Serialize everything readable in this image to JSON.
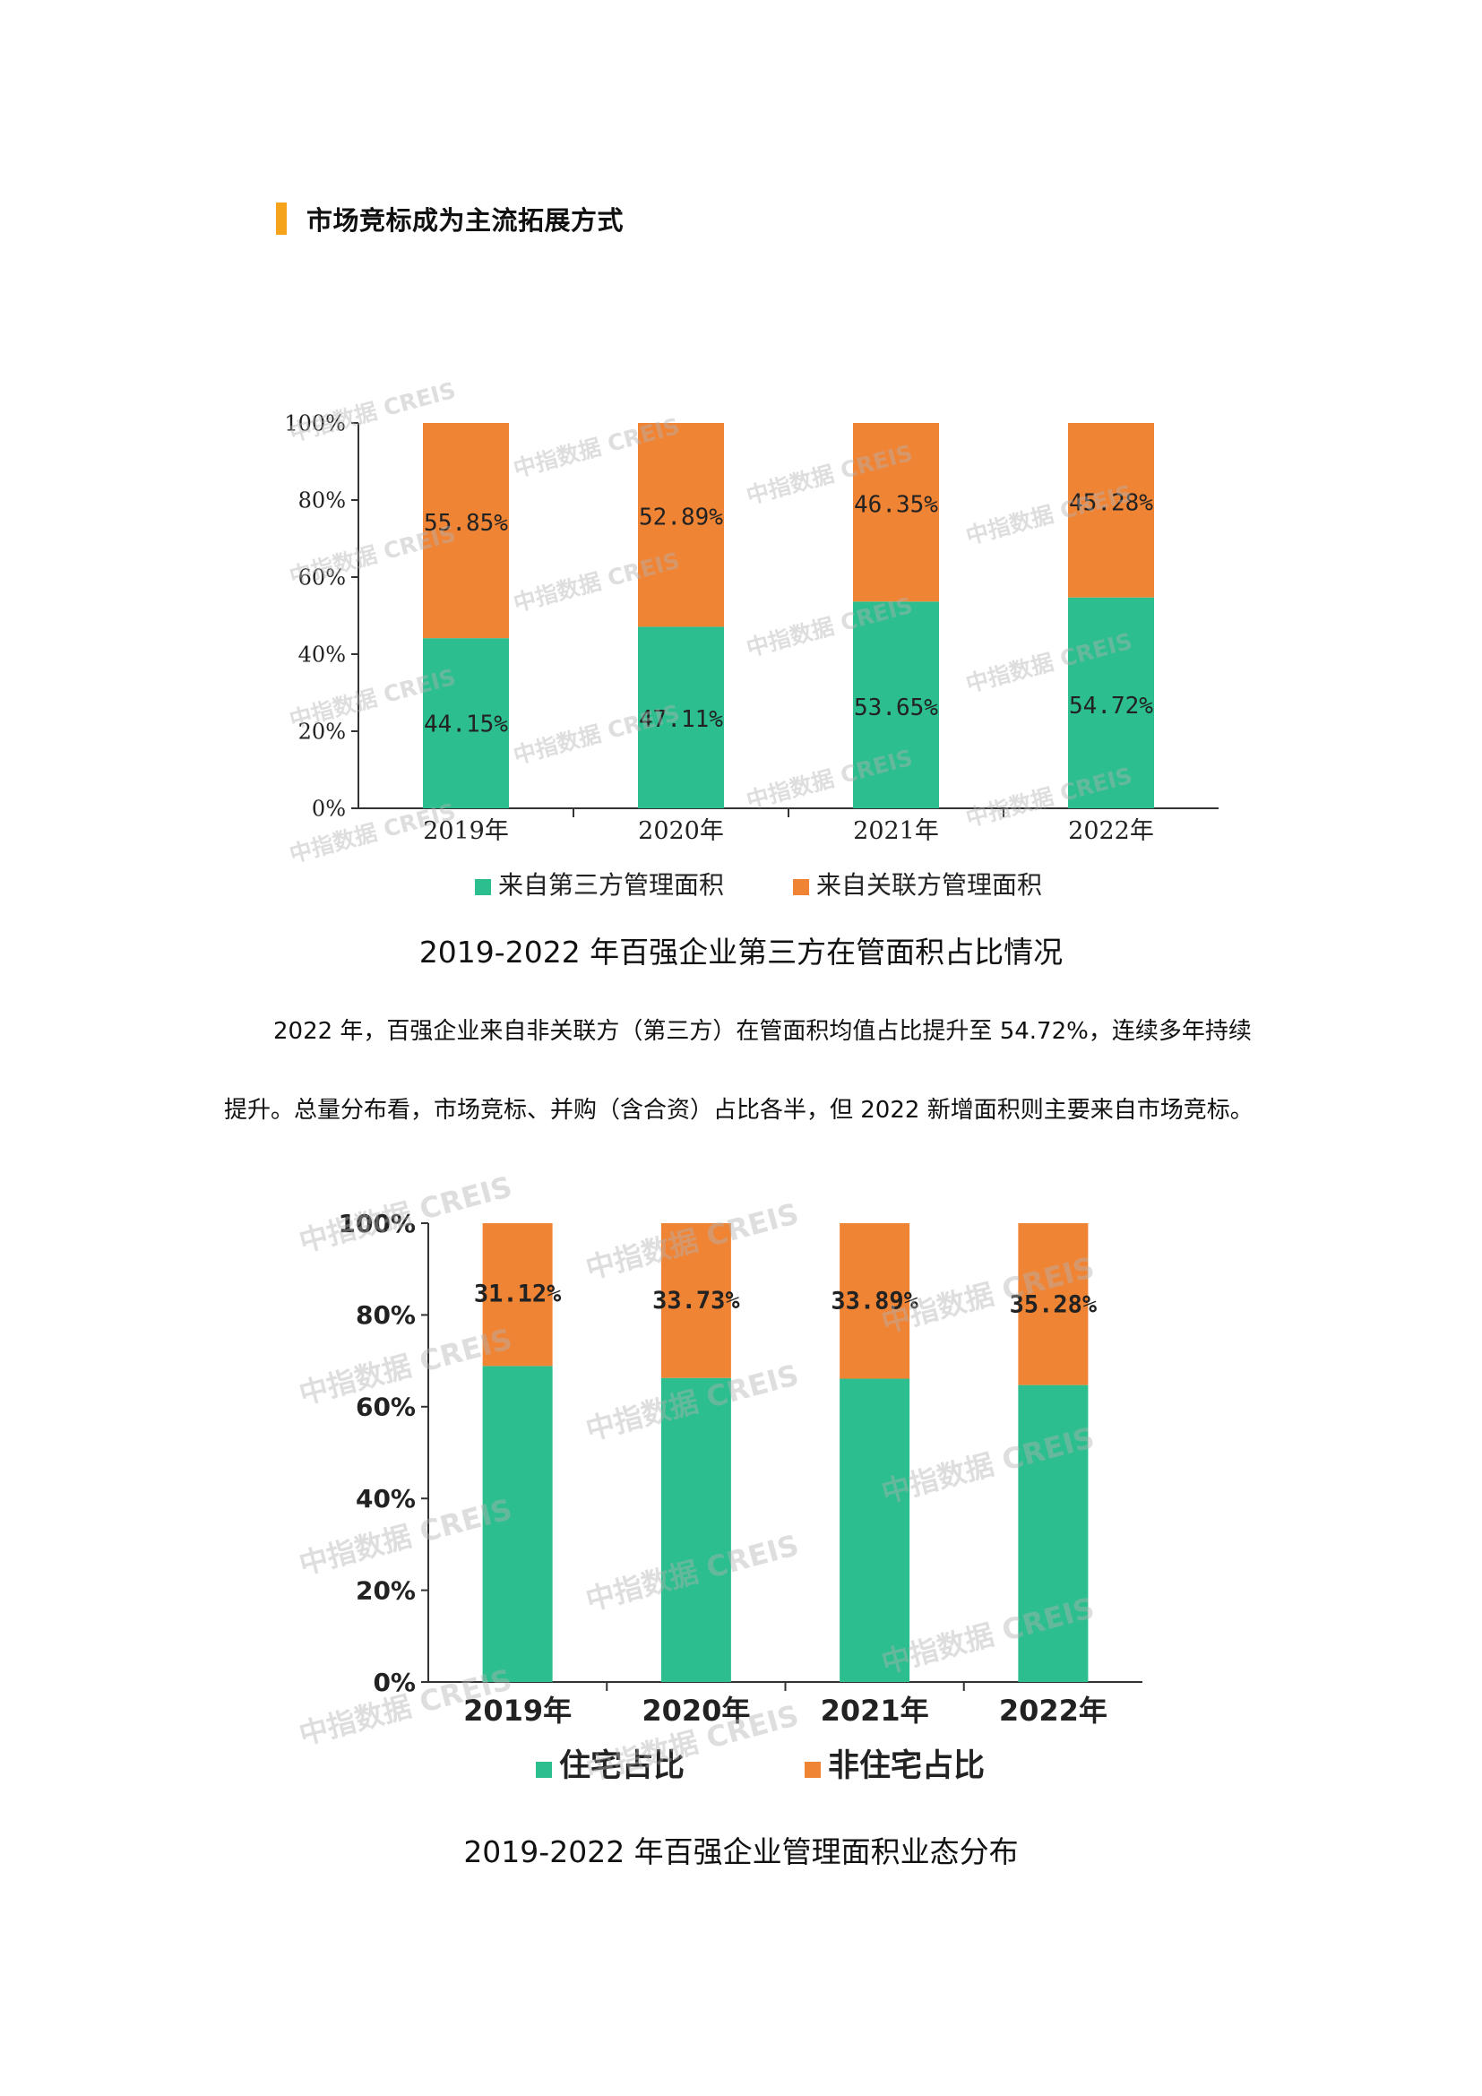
{
  "section": {
    "title": "市场竞标成为主流拓展方式",
    "accent_color": "#F5A31A"
  },
  "watermark": "中指数据 CREIS",
  "chart_data": [
    {
      "type": "bar",
      "stacked": true,
      "categories": [
        "2019年",
        "2020年",
        "2021年",
        "2022年"
      ],
      "series": [
        {
          "name": "来自第三方管理面积",
          "values": [
            44.15,
            47.11,
            53.65,
            54.72
          ],
          "labels": [
            "44.15%",
            "47.11%",
            "53.65%",
            "54.72%"
          ],
          "color": "#2CBE8E"
        },
        {
          "name": "来自关联方管理面积",
          "values": [
            55.85,
            52.89,
            46.35,
            45.28
          ],
          "labels": [
            "55.85%",
            "52.89%",
            "46.35%",
            "45.28%"
          ],
          "color": "#F08435"
        }
      ],
      "yticks": [
        "0%",
        "20%",
        "40%",
        "60%",
        "80%",
        "100%"
      ],
      "ylim": [
        0,
        100
      ],
      "legend": "bottom",
      "grid": false,
      "caption": "2019-2022 年百强企业第三方在管面积占比情况"
    },
    {
      "type": "bar",
      "stacked": true,
      "categories": [
        "2019年",
        "2020年",
        "2021年",
        "2022年"
      ],
      "series": [
        {
          "name": "住宅占比",
          "values": [
            68.88,
            66.27,
            66.11,
            64.72
          ],
          "labels": [
            "",
            "",
            "",
            ""
          ],
          "color": "#2CBE8E"
        },
        {
          "name": "非住宅占比",
          "values": [
            31.12,
            33.73,
            33.89,
            35.28
          ],
          "labels": [
            "31.12%",
            "33.73%",
            "33.89%",
            "35.28%"
          ],
          "color": "#F08435"
        }
      ],
      "yticks": [
        "0%",
        "20%",
        "40%",
        "60%",
        "80%",
        "100%"
      ],
      "ylim": [
        0,
        100
      ],
      "legend": "bottom",
      "grid": false,
      "caption": "2019-2022 年百强企业管理面积业态分布"
    }
  ],
  "paragraph": {
    "line1": "2022 年，百强企业来自非关联方（第三方）在管面积均值占比提升至 54.72%，连续多年持续",
    "line2": "提升。总量分布看，市场竞标、并购（含合资）占比各半，但 2022 新增面积则主要来自市场竞标。"
  }
}
